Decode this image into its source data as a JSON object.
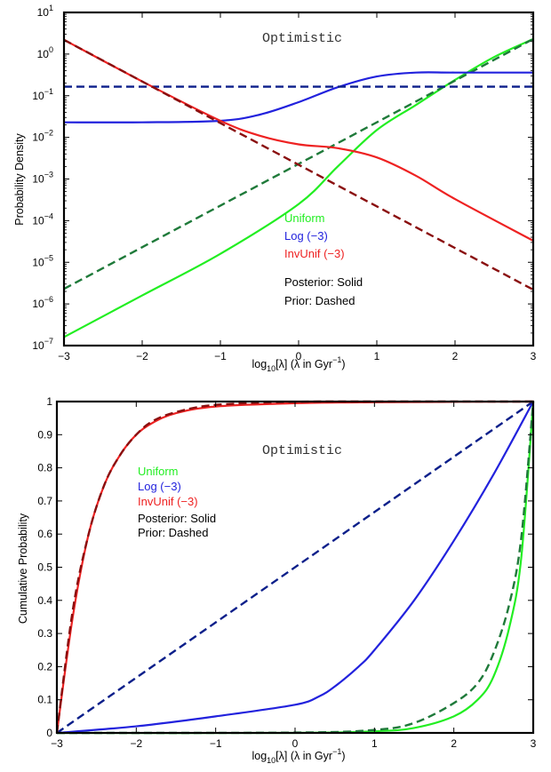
{
  "colors": {
    "uniform_post": "#22ee22",
    "uniform_prior": "#1f7a3a",
    "log_post": "#2222dd",
    "log_prior": "#0c1f8a",
    "invunif_post": "#ee2222",
    "invunif_prior": "#8a0f0f",
    "text": "#000000"
  },
  "chart_data": [
    {
      "type": "line",
      "title": "Optimistic",
      "xlabel_main": "log",
      "xlabel_sub": "10",
      "xlabel_rest": "[λ]  (λ in Gyr",
      "xlabel_sup": "−1",
      "xlabel_end": ")",
      "ylabel": "Probability Density",
      "xlim": [
        -3,
        3
      ],
      "ylim": [
        1e-07,
        10
      ],
      "yscale": "log",
      "xticks": [
        "−3",
        "−2",
        "−1",
        "0",
        "1",
        "2",
        "3"
      ],
      "yticks": [
        {
          "base": "10",
          "exp": "−7"
        },
        {
          "base": "10",
          "exp": "−6"
        },
        {
          "base": "10",
          "exp": "−5"
        },
        {
          "base": "10",
          "exp": "−4"
        },
        {
          "base": "10",
          "exp": "−3"
        },
        {
          "base": "10",
          "exp": "−2"
        },
        {
          "base": "10",
          "exp": "−1"
        },
        {
          "base": "10",
          "exp": "0"
        },
        {
          "base": "10",
          "exp": "1"
        }
      ],
      "legend": [
        "Uniform",
        "Log (−3)",
        "InvUnif (−3)",
        "Posterior: Solid",
        "Prior: Dashed"
      ],
      "series": [
        {
          "name": "Uniform",
          "style": "solid",
          "x": [
            -3.0,
            -2.0,
            -1.0,
            0.0,
            0.5,
            1.0,
            1.5,
            2.0,
            2.5,
            3.0
          ],
          "y": [
            1.6e-07,
            1.6e-06,
            1.6e-05,
            0.00025,
            0.002,
            0.015,
            0.06,
            0.24,
            0.85,
            2.3
          ]
        },
        {
          "name": "Uniform",
          "style": "dashed",
          "x": [
            -3.0,
            3.0
          ],
          "y": [
            2.3e-06,
            2.3
          ]
        },
        {
          "name": "Log (−3)",
          "style": "solid",
          "x": [
            -3.0,
            -2.0,
            -1.0,
            -0.5,
            0.0,
            0.5,
            1.0,
            1.5,
            2.0,
            3.0
          ],
          "y": [
            0.023,
            0.023,
            0.025,
            0.035,
            0.07,
            0.16,
            0.29,
            0.36,
            0.36,
            0.36
          ]
        },
        {
          "name": "Log (−3)",
          "style": "dashed",
          "x": [
            -3.0,
            3.0
          ],
          "y": [
            0.165,
            0.165
          ]
        },
        {
          "name": "InvUnif (−3)",
          "style": "solid",
          "x": [
            -3.0,
            -2.0,
            -1.0,
            -0.5,
            0.0,
            0.5,
            1.0,
            1.5,
            2.0,
            3.0
          ],
          "y": [
            2.2,
            0.22,
            0.025,
            0.011,
            0.0068,
            0.0055,
            0.0033,
            0.0012,
            0.00033,
            3.3e-05
          ]
        },
        {
          "name": "InvUnif (−3)",
          "style": "dashed",
          "x": [
            -3.0,
            3.0
          ],
          "y": [
            2.2,
            2.2e-06
          ]
        }
      ]
    },
    {
      "type": "line",
      "title": "Optimistic",
      "xlabel_main": "log",
      "xlabel_sub": "10",
      "xlabel_rest": "[λ]  (λ in Gyr",
      "xlabel_sup": "−1",
      "xlabel_end": ")",
      "ylabel": "Cumulative Probability",
      "xlim": [
        -3,
        3
      ],
      "ylim": [
        0,
        1
      ],
      "yscale": "linear",
      "xticks": [
        "−3",
        "−2",
        "−1",
        "0",
        "1",
        "2",
        "3"
      ],
      "yticks": [
        "0",
        "0.1",
        "0.2",
        "0.3",
        "0.4",
        "0.5",
        "0.6",
        "0.7",
        "0.8",
        "0.9",
        "1"
      ],
      "legend": [
        "Uniform",
        "Log (−3)",
        "InvUnif (−3)",
        "Posterior: Solid",
        "Prior: Dashed"
      ],
      "series": [
        {
          "name": "Uniform",
          "style": "solid",
          "x": [
            -3.0,
            0.0,
            1.0,
            1.5,
            2.0,
            2.3,
            2.5,
            2.7,
            2.85,
            3.0
          ],
          "y": [
            0.0,
            0.0,
            0.005,
            0.015,
            0.05,
            0.1,
            0.17,
            0.32,
            0.53,
            1.0
          ]
        },
        {
          "name": "Uniform",
          "style": "dashed",
          "x": [
            -3.0,
            0.0,
            1.0,
            1.5,
            2.0,
            2.3,
            2.5,
            2.7,
            2.85,
            3.0
          ],
          "y": [
            0.0,
            0.001,
            0.009,
            0.03,
            0.09,
            0.15,
            0.24,
            0.39,
            0.59,
            1.0
          ]
        },
        {
          "name": "Log (−3)",
          "style": "solid",
          "x": [
            -3.0,
            -2.0,
            -1.0,
            0.0,
            0.3,
            0.5,
            0.8,
            1.0,
            1.5,
            2.0,
            2.5,
            3.0
          ],
          "y": [
            0.0,
            0.02,
            0.05,
            0.085,
            0.11,
            0.14,
            0.2,
            0.25,
            0.4,
            0.58,
            0.78,
            1.0
          ]
        },
        {
          "name": "Log (−3)",
          "style": "dashed",
          "x": [
            -3.0,
            3.0
          ],
          "y": [
            0.0,
            1.0
          ]
        },
        {
          "name": "InvUnif (−3)",
          "style": "solid",
          "x": [
            -3.0,
            -2.8,
            -2.6,
            -2.4,
            -2.2,
            -2.0,
            -1.8,
            -1.5,
            -1.0,
            0.0,
            1.0,
            3.0
          ],
          "y": [
            0.0,
            0.35,
            0.6,
            0.75,
            0.84,
            0.9,
            0.935,
            0.965,
            0.985,
            0.995,
            0.998,
            1.0
          ]
        },
        {
          "name": "InvUnif (−3)",
          "style": "dashed",
          "x": [
            -3.0,
            -2.8,
            -2.6,
            -2.4,
            -2.2,
            -2.0,
            -1.8,
            -1.5,
            -1.0,
            0.0,
            1.0,
            3.0
          ],
          "y": [
            0.0,
            0.37,
            0.6,
            0.75,
            0.84,
            0.9,
            0.94,
            0.968,
            0.99,
            0.999,
            1.0,
            1.0
          ]
        }
      ]
    }
  ]
}
